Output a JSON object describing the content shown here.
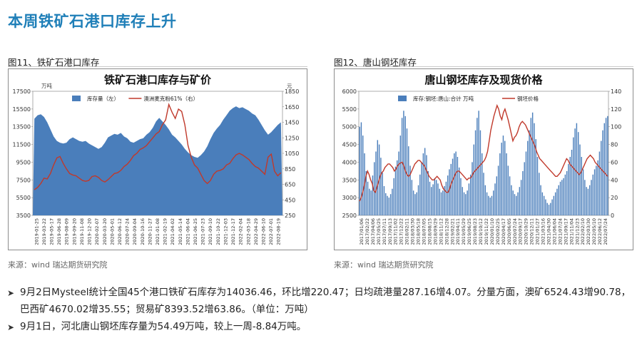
{
  "page": {
    "title": "本周铁矿石港口库存上升"
  },
  "figures": [
    {
      "caption": "图11、铁矿石港口库存",
      "source": "来源：wind   瑞达期货研究院"
    },
    {
      "caption": "图12、唐山钢坯库存",
      "source": "来源：wind   瑞达期货研究院"
    }
  ],
  "chart_data": [
    {
      "type": "area",
      "title": "铁矿石港口库存与矿价",
      "left_unit": "万吨",
      "right_unit": "元",
      "ylim_left": [
        3500,
        17500
      ],
      "yticks_left": [
        3500,
        5500,
        7500,
        9500,
        11500,
        13500,
        15500,
        17500
      ],
      "ylim_right": [
        250,
        1850
      ],
      "yticks_right": [
        250,
        450,
        650,
        850,
        1050,
        1250,
        1450,
        1650,
        1850
      ],
      "x_ticks": [
        "2019-01-25",
        "2019-03-22",
        "2019-05-17",
        "2019-06-28",
        "2019-08-09",
        "2019-09-20",
        "2019-11-08",
        "2019-12-20",
        "2020-02-07",
        "2020-03-20",
        "2020-05-01",
        "2020-06-12",
        "2020-07-24",
        "2020-09-04",
        "2020-10-16",
        "2020-11-27",
        "2021-01-08",
        "2021-02-19",
        "2021-04-02",
        "2021-05-14",
        "2021-06-04",
        "2021-06-25",
        "2021-07-23",
        "2021-09-10",
        "2021-10-22",
        "2021-12-03",
        "2021-12-17",
        "2022-02-04",
        "2022-03-18",
        "2022-04-29",
        "2022-06-10",
        "2022-07-01",
        "2022-08-19"
      ],
      "grid": false,
      "legend_position": "top",
      "series": [
        {
          "name": "库存量（左）",
          "kind": "area",
          "axis": "left",
          "color": "#4a7ebb",
          "values": [
            14400,
            14800,
            14900,
            14600,
            14000,
            13200,
            12400,
            11900,
            11700,
            11600,
            11700,
            12100,
            12300,
            12100,
            11900,
            11800,
            11900,
            11600,
            11400,
            11200,
            11000,
            11200,
            11700,
            12300,
            12500,
            12700,
            12600,
            12800,
            12400,
            12200,
            11800,
            11700,
            11900,
            12100,
            12200,
            12600,
            12900,
            13400,
            14100,
            14500,
            14100,
            13700,
            13200,
            12600,
            12300,
            11900,
            11500,
            11000,
            10600,
            10300,
            10100,
            10000,
            10300,
            10700,
            11300,
            12100,
            12800,
            13300,
            13700,
            14300,
            14800,
            15300,
            15600,
            15800,
            15600,
            15700,
            15500,
            15300,
            15000,
            14800,
            14300,
            13700,
            13100,
            12600,
            12900,
            13300,
            13700,
            14000
          ]
        },
        {
          "name": "澳洲麦克粉61%（右）",
          "kind": "line",
          "axis": "right",
          "color": "#c0392b",
          "values": [
            580,
            610,
            660,
            730,
            720,
            790,
            900,
            990,
            1010,
            920,
            850,
            790,
            770,
            760,
            730,
            700,
            690,
            700,
            750,
            760,
            740,
            700,
            680,
            710,
            750,
            790,
            800,
            830,
            880,
            910,
            960,
            1020,
            1050,
            1100,
            1120,
            1150,
            1200,
            1250,
            1300,
            1330,
            1420,
            1480,
            1680,
            1580,
            1500,
            1620,
            1590,
            1420,
            1150,
            1000,
            900,
            860,
            780,
            700,
            660,
            700,
            780,
            820,
            830,
            850,
            900,
            920,
            980,
            1030,
            1050,
            1030,
            1000,
            970,
            920,
            880,
            860,
            820,
            780,
            1000,
            1040,
            820,
            760,
            800
          ]
        }
      ]
    },
    {
      "type": "bar",
      "title": "唐山钢坯库存及现货价格",
      "ylim_left": [
        2500,
        6000
      ],
      "yticks_left": [
        2500,
        3000,
        3500,
        4000,
        4500,
        5000,
        5500,
        6000
      ],
      "ylim_right": [
        0,
        140
      ],
      "yticks_right": [
        0,
        20,
        40,
        60,
        80,
        100,
        120,
        140
      ],
      "x_ticks": [
        "2017/01/06",
        "2017/02/22",
        "2017/04/06",
        "2017/05/25",
        "2017/07/11",
        "2017/09/13",
        "2017/11/02",
        "2017/12/22",
        "2018/02/11",
        "2018/03/30",
        "2018/05/18",
        "2018/07/05",
        "2018/08/15",
        "2018/09/29",
        "2018/11/12",
        "2018/12/28",
        "2019/02/21",
        "2019/04/11",
        "2019/05/29",
        "2019/06/25",
        "2019/08/23",
        "2019/10/12",
        "2019/11/22",
        "2020/01/10",
        "2020/02/25",
        "2020/04/17",
        "2020/06/05",
        "2020/07/24",
        "2020/09/17",
        "2020/10/29",
        "2020/12/11",
        "2021/01/27",
        "2021/03/16",
        "2021/04/30",
        "2021/06/04",
        "2021/07/24",
        "2021/09/17",
        "2021/11/04",
        "2021/12/23",
        "2022/02/10",
        "2022/03/30",
        "2022/05/10",
        "2022/06/12",
        "2022/07/24"
      ],
      "grid": false,
      "legend_position": "top",
      "series": [
        {
          "name": "库存:钢坯:唐山:合计  万吨",
          "kind": "bar",
          "axis": "right",
          "color": "#4a7ebb",
          "values": [
            100,
            105,
            90,
            70,
            50,
            38,
            30,
            28,
            45,
            60,
            72,
            85,
            80,
            65,
            48,
            33,
            25,
            22,
            20,
            24,
            30,
            42,
            55,
            62,
            72,
            90,
            110,
            118,
            112,
            98,
            78,
            56,
            40,
            28,
            24,
            26,
            34,
            46,
            60,
            70,
            76,
            68,
            50,
            38,
            32,
            35,
            42,
            40,
            36,
            30,
            26,
            28,
            33,
            38,
            45,
            52,
            58,
            64,
            70,
            72,
            66,
            54,
            42,
            32,
            26,
            24,
            28,
            36,
            46,
            60,
            80,
            96,
            110,
            118,
            96,
            70,
            48,
            34,
            26,
            22,
            20,
            22,
            28,
            36,
            44,
            56,
            70,
            82,
            90,
            84,
            70,
            56,
            44,
            34,
            28,
            24,
            22,
            26,
            32,
            40,
            50,
            60,
            72,
            84,
            96,
            110,
            116,
            104,
            86,
            66,
            48,
            34,
            26,
            22,
            18,
            14,
            12,
            14,
            18,
            22,
            26,
            30,
            34,
            38,
            40,
            42,
            46,
            50,
            58,
            66,
            74,
            88,
            98,
            104,
            94,
            80,
            66,
            52,
            40,
            32,
            30,
            34,
            40,
            46,
            52,
            56,
            62,
            72,
            84,
            96,
            104,
            110,
            112
          ]
        },
        {
          "name": "钢坯价格",
          "kind": "line",
          "axis": "left",
          "color": "#c0392b",
          "values": [
            2900,
            3000,
            3150,
            3350,
            3600,
            3750,
            3650,
            3500,
            3400,
            3200,
            3150,
            3300,
            3450,
            3600,
            3700,
            3750,
            3850,
            3900,
            3950,
            3950,
            3900,
            3850,
            3750,
            3800,
            3900,
            3950,
            3980,
            4000,
            3900,
            3750,
            3650,
            3600,
            3650,
            3750,
            3850,
            3950,
            4000,
            4050,
            4050,
            4000,
            3950,
            3900,
            3800,
            3700,
            3600,
            3550,
            3500,
            3500,
            3550,
            3600,
            3550,
            3500,
            3350,
            3250,
            3200,
            3150,
            3150,
            3250,
            3400,
            3500,
            3600,
            3700,
            3750,
            3750,
            3700,
            3650,
            3600,
            3550,
            3500,
            3550,
            3550,
            3600,
            3700,
            3750,
            3800,
            3850,
            3900,
            3950,
            4000,
            4050,
            4150,
            4300,
            4600,
            4900,
            5100,
            5300,
            5450,
            5600,
            5500,
            5300,
            5200,
            5400,
            5500,
            5350,
            5200,
            5000,
            4800,
            4600,
            4700,
            4750,
            4850,
            5000,
            5100,
            5150,
            5100,
            5050,
            4950,
            4850,
            4750,
            4650,
            4550,
            4450,
            4300,
            4200,
            4100,
            4050,
            4000,
            3950,
            3900,
            3850,
            3800,
            3750,
            3700,
            3650,
            3600,
            3600,
            3650,
            3700,
            3800,
            3900,
            4000,
            4100,
            4050,
            3950,
            3900,
            3850,
            3800,
            3750,
            3700,
            3650,
            3700,
            3800,
            3900,
            4000,
            4100,
            4150,
            4200,
            4150,
            4100,
            4000,
            3950,
            3900,
            3850,
            3800,
            3750,
            3700,
            3650,
            3600
          ]
        }
      ]
    }
  ],
  "bullets": [
    "9月2日Mysteel统计全国45个港口铁矿石库存为14036.46，环比增220.47；日均疏港量287.16增4.07。分量方面，澳矿6524.43增90.78，巴西矿4670.02增35.55；贸易矿8393.52增63.86。（单位：万吨）",
    "9月1日，河北唐山钢坯库存量为54.49万吨，较上一周-8.84万吨。"
  ]
}
